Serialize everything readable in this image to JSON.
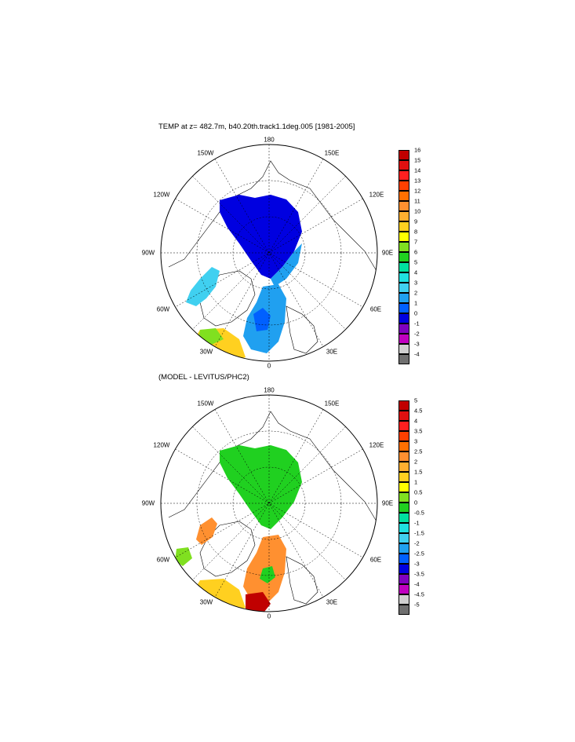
{
  "panel1": {
    "title": "TEMP at z= 482.7m, b40.20th.track1.1deg.005 [1981-2005]",
    "lon_labels": {
      "top": "180",
      "l150": "150W",
      "r150": "150E",
      "l120": "120W",
      "r120": "120E",
      "l90": "90W",
      "r90": "90E",
      "l60": "60W",
      "r60": "60E",
      "l30": "30W",
      "r30": "30E",
      "bottom": "0"
    },
    "colorbar": {
      "labels": [
        "16",
        "15",
        "14",
        "13",
        "12",
        "11",
        "10",
        "9",
        "8",
        "7",
        "6",
        "5",
        "4",
        "3",
        "2",
        "1",
        "0",
        "-1",
        "-2",
        "-3",
        "-4"
      ],
      "colors": [
        "#c00000",
        "#e01010",
        "#ff2020",
        "#ff4000",
        "#ff7000",
        "#ff9030",
        "#ffb030",
        "#ffd020",
        "#ffff00",
        "#80e020",
        "#20d020",
        "#00e0a0",
        "#20e0e0",
        "#40d0f0",
        "#20a0f0",
        "#0060ff",
        "#0000e0",
        "#8000c0",
        "#c000c0",
        "#d0d0d0",
        "#707070"
      ]
    }
  },
  "panel2": {
    "title": "(MODEL - LEVITUS/PHC2)",
    "lon_labels": {
      "top": "180",
      "l150": "150W",
      "r150": "150E",
      "l120": "120W",
      "r120": "120E",
      "l90": "90W",
      "r90": "90E",
      "l60": "60W",
      "r60": "60E",
      "l30": "30W",
      "r30": "30E",
      "bottom": "0"
    },
    "colorbar": {
      "labels": [
        "5",
        "4.5",
        "4",
        "3.5",
        "3",
        "2.5",
        "2",
        "1.5",
        "1",
        "0.5",
        "0",
        "-0.5",
        "-1",
        "-1.5",
        "-2",
        "-2.5",
        "-3",
        "-3.5",
        "-4",
        "-4.5",
        "-5"
      ],
      "colors": [
        "#c00000",
        "#e01010",
        "#ff2020",
        "#ff4000",
        "#ff7000",
        "#ff9030",
        "#ffb030",
        "#ffd020",
        "#ffff00",
        "#80e020",
        "#20d020",
        "#00e0a0",
        "#20e0e0",
        "#40d0f0",
        "#20a0f0",
        "#0060ff",
        "#0000e0",
        "#8000c0",
        "#c000c0",
        "#d0d0d0",
        "#707070"
      ]
    }
  }
}
